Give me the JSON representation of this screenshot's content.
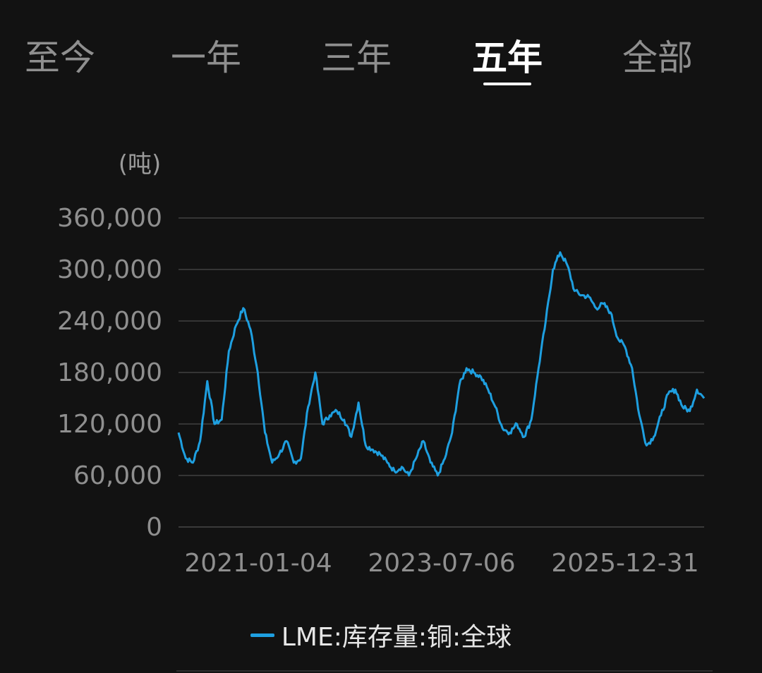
{
  "tabs": [
    {
      "label": "至今",
      "active": false
    },
    {
      "label": "一年",
      "active": false
    },
    {
      "label": "三年",
      "active": false
    },
    {
      "label": "五年",
      "active": true
    },
    {
      "label": "全部",
      "active": false
    }
  ],
  "chart_data": {
    "type": "line",
    "ylabel": "(吨)",
    "ylim": [
      0,
      360000
    ],
    "yticks": [
      "0",
      "60,000",
      "120,000",
      "180,000",
      "240,000",
      "300,000",
      "360,000"
    ],
    "ytick_values": [
      0,
      60000,
      120000,
      180000,
      240000,
      300000,
      360000
    ],
    "xticks": [
      "2021-01-04",
      "2023-07-06",
      "2025-12-31"
    ],
    "grid": true,
    "legend_position": "bottom",
    "series": [
      {
        "name": "LME:库存量:铜:全球",
        "color": "#1e9fe0",
        "x": [
          "2020-03",
          "2020-04",
          "2020-05",
          "2020-06",
          "2020-07",
          "2020-08",
          "2020-09",
          "2020-10",
          "2020-11",
          "2020-12",
          "2021-01",
          "2021-02",
          "2021-03",
          "2021-04",
          "2021-05",
          "2021-06",
          "2021-07",
          "2021-08",
          "2021-09",
          "2021-10",
          "2021-11",
          "2021-12",
          "2022-01",
          "2022-02",
          "2022-03",
          "2022-04",
          "2022-05",
          "2022-06",
          "2022-07",
          "2022-08",
          "2022-09",
          "2022-10",
          "2022-11",
          "2022-12",
          "2023-01",
          "2023-02",
          "2023-03",
          "2023-04",
          "2023-05",
          "2023-06",
          "2023-07",
          "2023-08",
          "2023-09",
          "2023-10",
          "2023-11",
          "2023-12",
          "2024-01",
          "2024-02",
          "2024-03",
          "2024-04",
          "2024-05",
          "2024-06",
          "2024-07",
          "2024-08",
          "2024-09",
          "2024-10",
          "2024-11",
          "2024-12",
          "2025-01",
          "2025-02",
          "2025-03",
          "2025-04",
          "2025-05",
          "2025-06",
          "2025-07",
          "2025-08",
          "2025-09",
          "2025-10",
          "2025-11",
          "2025-12",
          "2026-01",
          "2026-02",
          "2026-03",
          "2026-04"
        ],
        "values": [
          110000,
          80000,
          75000,
          100000,
          170000,
          120000,
          125000,
          205000,
          235000,
          255000,
          230000,
          180000,
          110000,
          75000,
          85000,
          100000,
          75000,
          80000,
          140000,
          180000,
          120000,
          130000,
          135000,
          125000,
          105000,
          145000,
          95000,
          90000,
          85000,
          75000,
          65000,
          70000,
          60000,
          80000,
          100000,
          75000,
          60000,
          80000,
          110000,
          165000,
          185000,
          180000,
          175000,
          160000,
          140000,
          115000,
          110000,
          120000,
          105000,
          125000,
          185000,
          240000,
          300000,
          320000,
          305000,
          275000,
          270000,
          268000,
          255000,
          260000,
          250000,
          220000,
          210000,
          185000,
          130000,
          95000,
          105000,
          130000,
          155000,
          160000,
          140000,
          135000,
          160000,
          150000
        ]
      }
    ]
  }
}
